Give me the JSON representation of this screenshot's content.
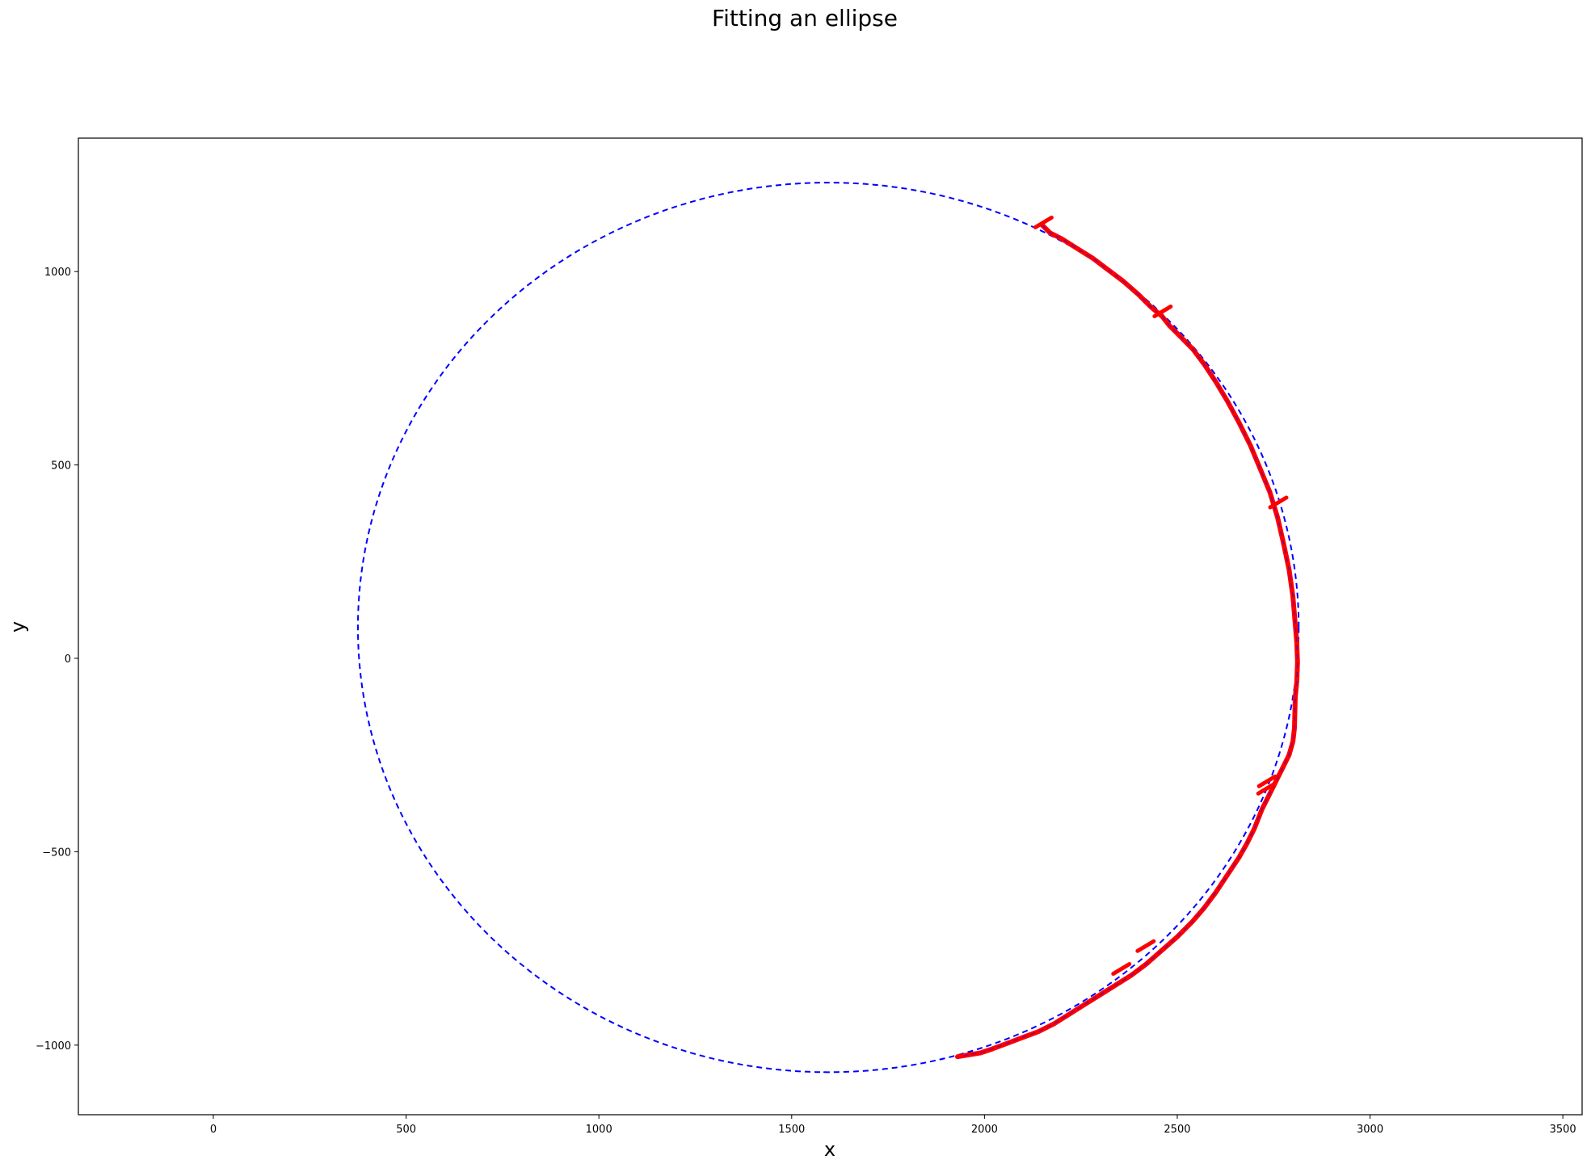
{
  "chart_data": {
    "type": "line",
    "title": "Fitting an ellipse",
    "xlabel": "x",
    "ylabel": "y",
    "xlim": [
      -350,
      3550
    ],
    "ylim": [
      -1180,
      1345
    ],
    "xticks": [
      0,
      500,
      1000,
      1500,
      2000,
      2500,
      3000,
      3500
    ],
    "yticks": [
      -1000,
      -500,
      0,
      500,
      1000
    ],
    "xtick_labels": [
      "0",
      "500",
      "1000",
      "1500",
      "2000",
      "2500",
      "3000",
      "3500"
    ],
    "ytick_labels": [
      "−1000",
      "−500",
      "0",
      "500",
      "1000"
    ],
    "grid": false,
    "legend": false,
    "series": [
      {
        "style": "red-solid-thick",
        "color": "#ff0000",
        "x": [
          2150,
          2170,
          2200,
          2240,
          2280,
          2320,
          2360,
          2400,
          2430,
          2460,
          2480,
          2500,
          2540,
          2570,
          2600,
          2630,
          2660,
          2690,
          2715,
          2740,
          2760,
          2775,
          2790,
          2800,
          2805,
          2810,
          2812,
          2810,
          2806,
          2805,
          2804,
          2800,
          2790,
          2775,
          2760,
          2745,
          2720,
          2700,
          2680,
          2660,
          2630,
          2600,
          2570,
          2540,
          2500,
          2460,
          2420,
          2380,
          2340,
          2300,
          2260,
          2220,
          2180,
          2140,
          2100,
          2060,
          2020,
          1990,
          1960,
          1930
        ],
        "y": [
          1120,
          1100,
          1085,
          1060,
          1035,
          1005,
          975,
          940,
          910,
          885,
          860,
          840,
          800,
          760,
          715,
          665,
          610,
          550,
          490,
          430,
          365,
          300,
          230,
          160,
          100,
          40,
          -10,
          -60,
          -100,
          -140,
          -180,
          -215,
          -250,
          -280,
          -310,
          -340,
          -390,
          -440,
          -480,
          -515,
          -560,
          -605,
          -645,
          -680,
          -720,
          -755,
          -790,
          -820,
          -845,
          -870,
          -895,
          -920,
          -945,
          -965,
          -980,
          -995,
          -1010,
          -1020,
          -1025,
          -1030
        ]
      },
      {
        "style": "red-whiskers",
        "color": "#ff0000",
        "x": [
          2153,
          2462,
          2762,
          2733,
          2731,
          2418,
          2355
        ],
        "y": [
          1127,
          897,
          403,
          -318,
          -337,
          -744,
          -803
        ]
      },
      {
        "style": "blue-dashed",
        "color": "#0000ff",
        "shape": "ellipse",
        "center_x": 1595,
        "center_y": 80,
        "semi_axis_x": 1220,
        "semi_axis_y": 1150
      }
    ]
  }
}
